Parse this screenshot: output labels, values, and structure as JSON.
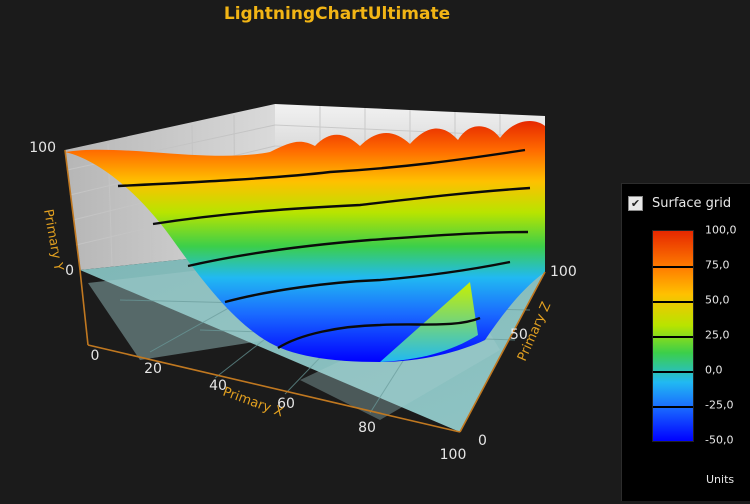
{
  "chart_data": {
    "type": "surface-3d",
    "title": "LightningChartUltimate",
    "x_axis": {
      "label": "Primary X",
      "ticks": [
        "0",
        "20",
        "40",
        "60",
        "80",
        "100"
      ]
    },
    "y_axis": {
      "label": "Primary Y",
      "ticks": [
        "0",
        "100"
      ]
    },
    "z_axis": {
      "label": "Primary Z",
      "ticks": [
        "0",
        "50",
        "100"
      ]
    },
    "value_range": [
      -50,
      100
    ],
    "contour_levels": [
      -25,
      0,
      25,
      50,
      75
    ],
    "colors": {
      "-50": "#0000ff",
      "-25": "#1a6bff",
      "0": "#21b9f2",
      "25": "#3ccf4a",
      "50": "#b8e400",
      "75": "#ffc000",
      "100": "#e62800"
    },
    "surface_grid": true
  },
  "legend": {
    "surface_grid_label": "Surface grid",
    "check_mark": "✔",
    "labels": [
      "100,0",
      "75,0",
      "50,0",
      "25,0",
      "0,0",
      "-25,0",
      "-50,0"
    ],
    "units_label": "Units"
  }
}
